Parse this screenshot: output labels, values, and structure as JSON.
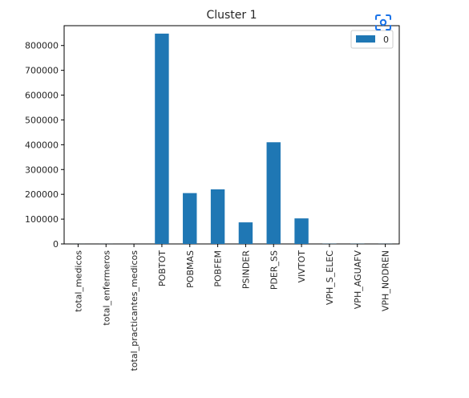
{
  "toolbar": {
    "capture_icon": "focus-capture-icon",
    "accent_color": "#1a73e8"
  },
  "chart_data": {
    "type": "bar",
    "title": "Cluster 1",
    "xlabel": "",
    "ylabel": "",
    "categories": [
      "total_medicos",
      "total_enfermeros",
      "total_practicantes_medicos",
      "POBTOT",
      "POBMAS",
      "POBFEM",
      "PSINDER",
      "PDER_SS",
      "VIVTOT",
      "VPH_S_ELEC",
      "VPH_AGUAFV",
      "VPH_NODREN"
    ],
    "series": [
      {
        "name": "0",
        "color": "#1f77b4",
        "values": [
          120,
          180,
          30,
          848000,
          205000,
          220000,
          87000,
          410000,
          103000,
          700,
          600,
          400
        ]
      }
    ],
    "ylim": [
      0,
      880000
    ],
    "yticks": [
      0,
      100000,
      200000,
      300000,
      400000,
      500000,
      600000,
      700000,
      800000
    ],
    "ytick_labels": [
      "0",
      "100000",
      "200000",
      "300000",
      "400000",
      "500000",
      "600000",
      "700000",
      "800000"
    ],
    "legend_position": "top-right",
    "grid": false
  }
}
